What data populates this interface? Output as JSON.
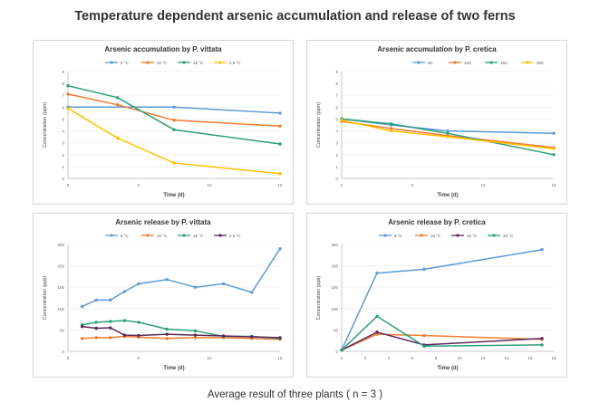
{
  "title": "Temperature dependent arsenic accumulation and release of two ferns",
  "footer": "Average result of three plants ( n = 3 )",
  "colors": {
    "c5": "#5b9bd5",
    "c10": "#ed7d31",
    "c15": "#2e9e7a",
    "c25": "#ffc000",
    "c15b": "#5a2a5a"
  },
  "chart_data": [
    {
      "type": "line",
      "title": "Arsenic accumulation by P. vittata",
      "xlabel": "Time (d)",
      "ylabel": "Concentration (ppm)",
      "xlim": [
        0,
        15
      ],
      "ylim": [
        0,
        9
      ],
      "xticks": [
        0,
        5,
        10,
        15
      ],
      "yticks": [
        0,
        1,
        2,
        3,
        4,
        5,
        6,
        7,
        8,
        9
      ],
      "legend": "top",
      "series": [
        {
          "name": "5 °C",
          "color": "#5b9bd5",
          "x": [
            0,
            7.5,
            15
          ],
          "y": [
            6.0,
            6.0,
            5.5
          ]
        },
        {
          "name": "10 °C",
          "color": "#ed7d31",
          "x": [
            0,
            3.5,
            7.5,
            15
          ],
          "y": [
            7.1,
            6.2,
            4.9,
            4.4
          ]
        },
        {
          "name": "15 °C",
          "color": "#2e9e7a",
          "x": [
            0,
            3.5,
            7.5,
            15
          ],
          "y": [
            7.8,
            6.8,
            4.1,
            2.9
          ]
        },
        {
          "name": "2.5 °C",
          "color": "#ffc000",
          "x": [
            0,
            3.5,
            7.5,
            15
          ],
          "y": [
            5.9,
            3.4,
            1.3,
            0.4
          ]
        }
      ]
    },
    {
      "type": "line",
      "title": "Arsenic accumulation by P. cretica",
      "xlabel": "Time (d)",
      "ylabel": "Concentration (ppm)",
      "xlim": [
        0,
        15
      ],
      "ylim": [
        0,
        9
      ],
      "xticks": [
        0,
        5,
        10,
        15
      ],
      "yticks": [
        0,
        1,
        2,
        3,
        4,
        5,
        6,
        7,
        8,
        9
      ],
      "legend": "top-right",
      "series": [
        {
          "name": "5C",
          "color": "#5b9bd5",
          "x": [
            0,
            3.5,
            7.5,
            15
          ],
          "y": [
            5.0,
            4.5,
            4.0,
            3.8
          ]
        },
        {
          "name": "10C",
          "color": "#ed7d31",
          "x": [
            0,
            3.5,
            7.5,
            15
          ],
          "y": [
            4.8,
            4.2,
            3.6,
            2.6
          ]
        },
        {
          "name": "15C",
          "color": "#2e9e7a",
          "x": [
            0,
            3.5,
            7.5,
            15
          ],
          "y": [
            5.0,
            4.6,
            3.8,
            2.0
          ]
        },
        {
          "name": "25C",
          "color": "#ffc000",
          "x": [
            0,
            3.5,
            7.5,
            15
          ],
          "y": [
            4.9,
            4.0,
            3.5,
            2.5
          ]
        }
      ]
    },
    {
      "type": "line",
      "title": "Arsenic release by P. vittata",
      "xlabel": "Time (d)",
      "ylabel": "Concentration (ppb)",
      "xlim": [
        0,
        15
      ],
      "ylim": [
        0,
        250
      ],
      "xticks": [
        0,
        5,
        10,
        15
      ],
      "yticks": [
        0,
        50,
        100,
        150,
        200,
        250
      ],
      "legend": "top",
      "series": [
        {
          "name": "5 °C",
          "color": "#5b9bd5",
          "x": [
            1,
            2,
            3,
            4,
            5,
            7,
            9,
            11,
            13,
            15
          ],
          "y": [
            105,
            120,
            120,
            140,
            158,
            168,
            150,
            158,
            138,
            240
          ]
        },
        {
          "name": "10 °C",
          "color": "#ed7d31",
          "x": [
            1,
            2,
            3,
            4,
            5,
            7,
            9,
            11,
            13,
            15
          ],
          "y": [
            30,
            32,
            32,
            35,
            33,
            30,
            32,
            32,
            30,
            28
          ]
        },
        {
          "name": "15 °C",
          "color": "#2e9e7a",
          "x": [
            1,
            2,
            3,
            4,
            5,
            7,
            9,
            11,
            13,
            15
          ],
          "y": [
            62,
            68,
            70,
            72,
            68,
            52,
            48,
            35,
            35,
            30
          ]
        },
        {
          "name": "2.5 °C",
          "color": "#5a2a5a",
          "x": [
            1,
            2,
            3,
            4,
            5,
            7,
            9,
            11,
            13,
            15
          ],
          "y": [
            58,
            54,
            55,
            38,
            37,
            40,
            38,
            36,
            34,
            32
          ]
        }
      ]
    },
    {
      "type": "line",
      "title": "Arsenic release by P. cretica",
      "xlabel": "Time (d)",
      "ylabel": "Concentration (ppb)",
      "xlim": [
        0,
        18
      ],
      "ylim": [
        0,
        250
      ],
      "xticks": [
        0,
        2,
        4,
        6,
        8,
        10,
        12,
        14,
        16,
        18
      ],
      "yticks": [
        0,
        50,
        100,
        150,
        200,
        250
      ],
      "legend": "top",
      "series": [
        {
          "name": "5 °C",
          "color": "#5b9bd5",
          "x": [
            0,
            3,
            7,
            17
          ],
          "y": [
            3,
            183,
            192,
            238
          ]
        },
        {
          "name": "10 °C",
          "color": "#ed7d31",
          "x": [
            0,
            3,
            7,
            17
          ],
          "y": [
            3,
            40,
            37,
            28
          ]
        },
        {
          "name": "15 °C",
          "color": "#5a2a5a",
          "x": [
            0,
            3,
            7,
            17
          ],
          "y": [
            3,
            45,
            15,
            30
          ]
        },
        {
          "name": "25 °C",
          "color": "#2e9e7a",
          "x": [
            0,
            3,
            7,
            17
          ],
          "y": [
            3,
            82,
            12,
            15
          ]
        }
      ]
    }
  ]
}
